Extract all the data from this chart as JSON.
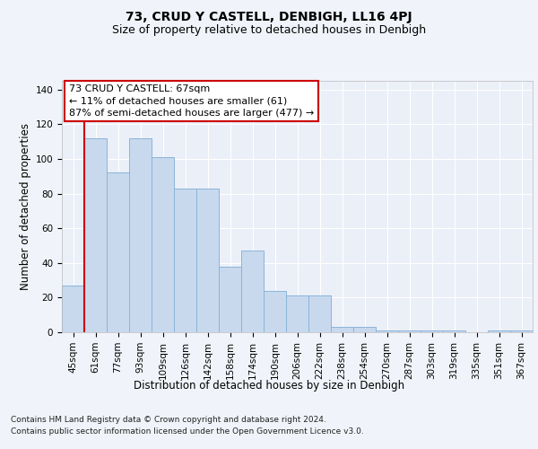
{
  "title": "73, CRUD Y CASTELL, DENBIGH, LL16 4PJ",
  "subtitle": "Size of property relative to detached houses in Denbigh",
  "xlabel": "Distribution of detached houses by size in Denbigh",
  "ylabel": "Number of detached properties",
  "categories": [
    "45sqm",
    "61sqm",
    "77sqm",
    "93sqm",
    "109sqm",
    "126sqm",
    "142sqm",
    "158sqm",
    "174sqm",
    "190sqm",
    "206sqm",
    "222sqm",
    "238sqm",
    "254sqm",
    "270sqm",
    "287sqm",
    "303sqm",
    "319sqm",
    "335sqm",
    "351sqm",
    "367sqm"
  ],
  "values": [
    27,
    112,
    92,
    112,
    101,
    83,
    83,
    38,
    47,
    24,
    21,
    21,
    3,
    3,
    1,
    1,
    1,
    1,
    0,
    1,
    1
  ],
  "bar_color": "#c8d9ee",
  "bar_edge_color": "#8ab4d8",
  "marker_index": 1,
  "marker_color": "#cc0000",
  "ylim": [
    0,
    145
  ],
  "yticks": [
    0,
    20,
    40,
    60,
    80,
    100,
    120,
    140
  ],
  "annotation_title": "73 CRUD Y CASTELL: 67sqm",
  "annotation_line1": "← 11% of detached houses are smaller (61)",
  "annotation_line2": "87% of semi-detached houses are larger (477) →",
  "annotation_box_color": "#ffffff",
  "annotation_box_edge": "#cc0000",
  "footer_line1": "Contains HM Land Registry data © Crown copyright and database right 2024.",
  "footer_line2": "Contains public sector information licensed under the Open Government Licence v3.0.",
  "background_color": "#f0f4fa",
  "plot_bg_color": "#eaeff8",
  "grid_color": "#ffffff",
  "title_fontsize": 10,
  "subtitle_fontsize": 9,
  "axis_label_fontsize": 8.5,
  "tick_fontsize": 7.5,
  "annotation_fontsize": 8,
  "footer_fontsize": 6.5
}
